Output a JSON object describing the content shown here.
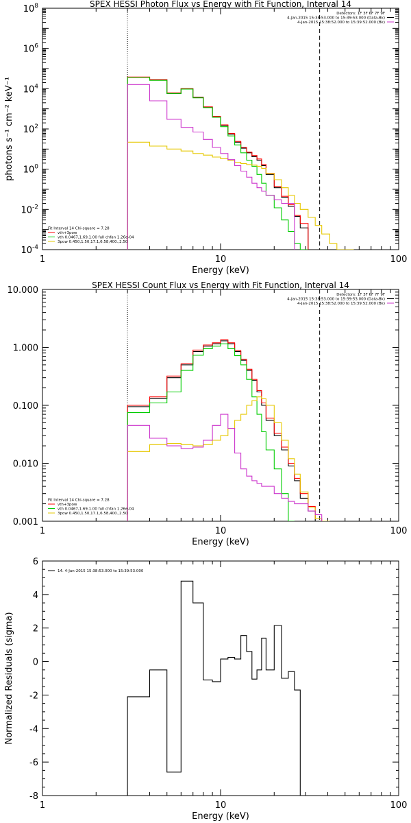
{
  "chart_data": [
    {
      "type": "line",
      "title": "SPEX HESSI Photon Flux vs Energy with Fit Function, Interval 14",
      "xlabel": "Energy (keV)",
      "ylabel": "photons s⁻¹ cm⁻² keV⁻¹",
      "xscale": "log",
      "yscale": "log",
      "xlim": [
        1,
        100
      ],
      "ylim": [
        0.0001,
        100000000
      ],
      "xticks": [
        {
          "v": 1,
          "label": "1"
        },
        {
          "v": 10,
          "label": "10"
        },
        {
          "v": 100,
          "label": "100"
        }
      ],
      "yticks": [
        {
          "v": 0.0001,
          "base": "10",
          "exp": "-4"
        },
        {
          "v": 0.01,
          "base": "10",
          "exp": "-2"
        },
        {
          "v": 1,
          "base": "10",
          "exp": "0"
        },
        {
          "v": 100,
          "base": "10",
          "exp": "2"
        },
        {
          "v": 10000,
          "base": "10",
          "exp": "4"
        },
        {
          "v": 1000000,
          "base": "10",
          "exp": "6"
        },
        {
          "v": 100000000,
          "base": "10",
          "exp": "8"
        }
      ],
      "vlines": [
        {
          "x": 3,
          "style": "dotted"
        },
        {
          "x": 36,
          "style": "dashed"
        }
      ],
      "legend_top": [
        {
          "text": "Detectors: 1F 3F 6F 7F 9F",
          "line": false,
          "color": ""
        },
        {
          "text": "4-Jan-2015 15:38:53.000 to 15:39:53.000 (Data-Bk)",
          "line": true,
          "color": "#000000"
        },
        {
          "text": "4-Jan-2015 15:38:52.000 to 15:39:52.000 (Bk)",
          "line": true,
          "color": "#cc33cc"
        }
      ],
      "legend_bottom": [
        {
          "text": "Fit Interval 14    Chi-square = 7.28",
          "line": false,
          "color": ""
        },
        {
          "text": "vth+3pow",
          "line": true,
          "color": "#ff0000"
        },
        {
          "text": "vth 0.0467,1.69,1.00  full chfan 1.26e-04",
          "line": true,
          "color": "#00cc00"
        },
        {
          "text": "3pow 0.450,1.50,17.1,6.58,400.,2.50",
          "line": true,
          "color": "#e6c800"
        }
      ],
      "edges": [
        3,
        4,
        5,
        6,
        7,
        8,
        9,
        10,
        11,
        12,
        13,
        14,
        15,
        16,
        17,
        18,
        20,
        22,
        24,
        26,
        28,
        31,
        34,
        37,
        41,
        45,
        50,
        56,
        63,
        71,
        80
      ],
      "series": [
        {
          "name": "data",
          "color": "#000000",
          "values": [
            36000,
            28000,
            5800,
            10000,
            3800,
            1200,
            400,
            150,
            55,
            22,
            11,
            6.5,
            4.2,
            2.8,
            1.5,
            0.55,
            0.12,
            0.04,
            0.014,
            0.0045,
            0.0012,
            null,
            null,
            null,
            null,
            null,
            null,
            null,
            null,
            null
          ]
        },
        {
          "name": "vth+3pow",
          "color": "#ff0000",
          "values": [
            38000,
            28000,
            6200,
            10000,
            3700,
            1250,
            420,
            160,
            60,
            24,
            12,
            7,
            4.8,
            3.2,
            1.7,
            0.62,
            0.14,
            0.045,
            0.017,
            0.005,
            0.002,
            null,
            null,
            null,
            null,
            null,
            null,
            null,
            null,
            null
          ]
        },
        {
          "name": "vth",
          "color": "#00cc00",
          "values": [
            36000,
            26000,
            5800,
            9600,
            3500,
            1150,
            380,
            130,
            45,
            16,
            6.5,
            2.8,
            1.4,
            0.55,
            0.2,
            0.05,
            0.012,
            0.003,
            0.0008,
            0.0002,
            8e-05,
            null,
            null,
            null,
            null,
            null,
            null,
            null,
            null,
            null
          ]
        },
        {
          "name": "3pow",
          "color": "#e6c800",
          "values": [
            22,
            14,
            10,
            8,
            6,
            5,
            4,
            3.3,
            2.7,
            2.2,
            1.9,
            1.7,
            1.6,
            1.4,
            1.1,
            0.6,
            0.3,
            0.12,
            0.05,
            0.02,
            0.01,
            0.004,
            0.0016,
            0.0006,
            0.0002,
            0.0001,
            7e-05,
            null,
            null,
            null
          ]
        },
        {
          "name": "background",
          "color": "#cc33cc",
          "values": [
            16000,
            2500,
            300,
            120,
            70,
            30,
            12,
            6,
            3,
            1.5,
            0.8,
            0.4,
            0.2,
            0.12,
            0.08,
            0.05,
            0.03,
            0.02,
            0.02,
            null,
            null,
            null,
            null,
            null,
            null,
            null,
            null,
            null,
            null,
            null
          ]
        }
      ]
    },
    {
      "type": "line",
      "title": "SPEX HESSI Count Flux vs Energy with Fit Function, Interval 14",
      "xlabel": "Energy (keV)",
      "ylabel": "",
      "xscale": "log",
      "yscale": "log",
      "xlim": [
        1,
        100
      ],
      "ylim": [
        0.001,
        10
      ],
      "xticks": [
        {
          "v": 1,
          "label": "1"
        },
        {
          "v": 10,
          "label": "10"
        },
        {
          "v": 100,
          "label": "100"
        }
      ],
      "yticks": [
        {
          "v": 0.001,
          "label": "0.001"
        },
        {
          "v": 0.01,
          "label": "0.010"
        },
        {
          "v": 0.1,
          "label": "0.100"
        },
        {
          "v": 1,
          "label": "1.000"
        },
        {
          "v": 10,
          "label": "10.000"
        }
      ],
      "vlines": [
        {
          "x": 3,
          "style": "dotted"
        },
        {
          "x": 36,
          "style": "dashed"
        }
      ],
      "legend_top": [
        {
          "text": "Detectors: 1F 3F 6F 7F 9F",
          "line": false,
          "color": ""
        },
        {
          "text": "4-Jan-2015 15:38:53.000 to 15:39:53.000 (Data-Bk)",
          "line": true,
          "color": "#000000"
        },
        {
          "text": "4-Jan-2015 15:38:52.000 to 15:39:52.000 (Bk)",
          "line": true,
          "color": "#cc33cc"
        }
      ],
      "legend_bottom": [
        {
          "text": "Fit Interval 14    Chi-square = 7.28",
          "line": false,
          "color": ""
        },
        {
          "text": "vth+3pow",
          "line": true,
          "color": "#ff0000"
        },
        {
          "text": "vth 0.0467,1.69,1.00  full chfan 1.26e-04",
          "line": true,
          "color": "#00cc00"
        },
        {
          "text": "3pow 0.450,1.50,17.1,6.58,400.,2.50",
          "line": true,
          "color": "#e6c800"
        }
      ],
      "edges": [
        3,
        4,
        5,
        6,
        7,
        8,
        9,
        10,
        11,
        12,
        13,
        14,
        15,
        16,
        17,
        18,
        20,
        22,
        24,
        26,
        28,
        31,
        34,
        37,
        41
      ],
      "series": [
        {
          "name": "data",
          "color": "#000000",
          "values": [
            0.095,
            0.13,
            0.3,
            0.5,
            0.85,
            1.05,
            1.15,
            1.3,
            1.15,
            0.85,
            0.6,
            0.4,
            0.27,
            0.17,
            0.1,
            0.055,
            0.03,
            0.017,
            0.009,
            0.005,
            0.0025,
            0.0015,
            0.0009,
            null
          ]
        },
        {
          "name": "vth+3pow",
          "color": "#ff0000",
          "values": [
            0.1,
            0.14,
            0.32,
            0.52,
            0.9,
            1.1,
            1.2,
            1.35,
            1.2,
            0.88,
            0.62,
            0.42,
            0.28,
            0.18,
            0.11,
            0.06,
            0.033,
            0.019,
            0.01,
            0.0055,
            0.003,
            0.0018,
            0.0011,
            null
          ]
        },
        {
          "name": "vth",
          "color": "#00cc00",
          "values": [
            0.075,
            0.11,
            0.17,
            0.4,
            0.73,
            0.95,
            1.05,
            1.15,
            0.95,
            0.72,
            0.5,
            0.28,
            0.14,
            0.07,
            0.035,
            0.017,
            0.008,
            0.003,
            0.001,
            null,
            null,
            null,
            null,
            null
          ]
        },
        {
          "name": "3pow",
          "color": "#e6c800",
          "values": [
            0.016,
            0.021,
            0.022,
            0.021,
            0.02,
            0.021,
            0.025,
            0.03,
            0.04,
            0.055,
            0.07,
            0.1,
            0.12,
            0.14,
            0.13,
            0.1,
            0.05,
            0.025,
            0.012,
            0.0065,
            0.0032,
            0.0017,
            0.0011,
            0.00095
          ]
        },
        {
          "name": "background",
          "color": "#cc33cc",
          "values": [
            0.045,
            0.027,
            0.02,
            0.018,
            0.019,
            0.025,
            0.045,
            0.07,
            0.04,
            0.015,
            0.008,
            0.006,
            0.005,
            0.0045,
            0.004,
            0.004,
            0.003,
            0.0025,
            0.0022,
            0.002,
            0.002,
            0.0015,
            0.0013,
            null
          ]
        }
      ]
    },
    {
      "type": "line",
      "title": "",
      "xlabel": "Energy (keV)",
      "ylabel": "Normalized Residuals (sigma)",
      "xscale": "log",
      "yscale": "linear",
      "xlim": [
        1,
        100
      ],
      "ylim": [
        -8,
        6
      ],
      "xticks": [
        {
          "v": 1,
          "label": "1"
        },
        {
          "v": 10,
          "label": "10"
        },
        {
          "v": 100,
          "label": "100"
        }
      ],
      "yticks": [
        {
          "v": -8,
          "label": "-8"
        },
        {
          "v": -6,
          "label": "-6"
        },
        {
          "v": -4,
          "label": "-4"
        },
        {
          "v": -2,
          "label": "-2"
        },
        {
          "v": 0,
          "label": "0"
        },
        {
          "v": 2,
          "label": "2"
        },
        {
          "v": 4,
          "label": "4"
        },
        {
          "v": 6,
          "label": "6"
        }
      ],
      "vlines": [],
      "legend_top": [
        {
          "text": "14.  4-Jan-2015 15:38:53.000 to 15:39:53.000",
          "line": true,
          "color": "#000000"
        }
      ],
      "legend_bottom": [],
      "edges": [
        3,
        4,
        5,
        6,
        7,
        8,
        9,
        10,
        11,
        12,
        13,
        14,
        15,
        16,
        17,
        18,
        20,
        22,
        24,
        26,
        28,
        31,
        34,
        37
      ],
      "series": [
        {
          "name": "residuals",
          "color": "#000000",
          "values": [
            -2.1,
            -0.5,
            -6.6,
            4.8,
            3.5,
            -1.1,
            -1.2,
            0.15,
            0.25,
            0.15,
            1.55,
            0.6,
            -1.05,
            -0.5,
            1.4,
            -0.5,
            2.15,
            -1.0,
            -0.6,
            -1.7,
            null,
            null,
            null
          ]
        }
      ]
    }
  ]
}
